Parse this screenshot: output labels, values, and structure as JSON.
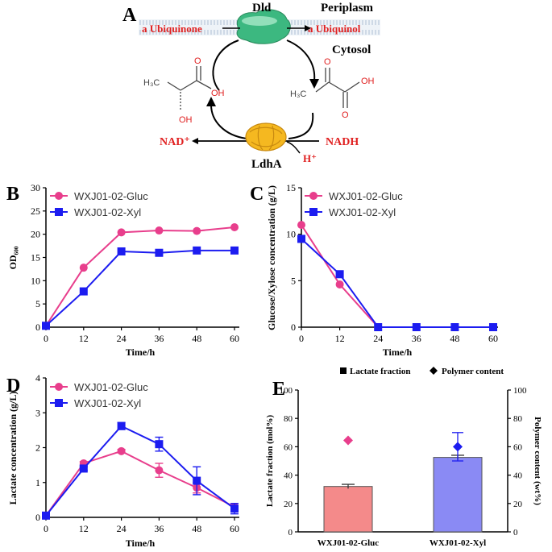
{
  "colors": {
    "gluc": "#e83e8c",
    "xyl": "#1c1cf0",
    "red": "#e02020",
    "barGluc": "#f48a8a",
    "barXyl": "#8a8af4"
  },
  "panelA": {
    "label": "A",
    "dld": "Dld",
    "periplasm": "Periplasm",
    "cytosol": "Cytosol",
    "ubiquinone": "a Ubiquinone",
    "ubiquinol": "a Ubiquinol",
    "nad": "NAD⁺",
    "nadh": "NADH",
    "h": "H⁺",
    "ldha": "LdhA",
    "lactate": {
      "o": "O",
      "h3c": "H₃C",
      "oh": "OH",
      "oh2": "OH"
    },
    "pyruvate": {
      "o1": "O",
      "o2": "O",
      "h3c": "H₃C",
      "oh": "OH"
    }
  },
  "chart_data": [
    {
      "id": "B",
      "type": "line",
      "label": "B",
      "ylabel": "OD₆₀₀",
      "xlabel": "Time/h",
      "x": [
        0,
        12,
        24,
        36,
        48,
        60
      ],
      "xlim": [
        0,
        60
      ],
      "ylim": [
        0,
        30
      ],
      "yticks": [
        0,
        5,
        10,
        15,
        20,
        25,
        30
      ],
      "series": [
        {
          "name": "WXJ01-02-Gluc",
          "values": [
            0.3,
            12.8,
            20.4,
            20.8,
            20.7,
            21.5
          ]
        },
        {
          "name": "WXJ01-02-Xyl",
          "values": [
            0.3,
            7.7,
            16.3,
            16.0,
            16.5,
            16.5
          ]
        }
      ]
    },
    {
      "id": "C",
      "type": "line",
      "label": "C",
      "ylabel": "Glucose/Xylose concentration (g/L)",
      "xlabel": "Time/h",
      "x": [
        0,
        12,
        24,
        36,
        48,
        60
      ],
      "xlim": [
        0,
        60
      ],
      "ylim": [
        0,
        15
      ],
      "yticks": [
        0,
        5,
        10,
        15
      ],
      "series": [
        {
          "name": "WXJ01-02-Gluc",
          "values": [
            11.0,
            4.6,
            0,
            0,
            0,
            0
          ]
        },
        {
          "name": "WXJ01-02-Xyl",
          "values": [
            9.5,
            5.7,
            0,
            0,
            0,
            0
          ]
        }
      ]
    },
    {
      "id": "D",
      "type": "line",
      "label": "D",
      "ylabel": "Lactate concentration (g/L)",
      "xlabel": "Time/h",
      "x": [
        0,
        12,
        24,
        36,
        48,
        60
      ],
      "xlim": [
        0,
        60
      ],
      "ylim": [
        0,
        4
      ],
      "yticks": [
        0,
        1,
        2,
        3,
        4
      ],
      "series": [
        {
          "name": "WXJ01-02-Gluc",
          "values": [
            0.05,
            1.55,
            1.9,
            1.35,
            0.85,
            0.3
          ],
          "errors": [
            0,
            0.05,
            0.05,
            0.2,
            0.15,
            0.1
          ]
        },
        {
          "name": "WXJ01-02-Xyl",
          "values": [
            0.05,
            1.4,
            2.62,
            2.1,
            1.05,
            0.25
          ],
          "errors": [
            0,
            0.05,
            0.1,
            0.2,
            0.4,
            0.15
          ]
        }
      ]
    },
    {
      "id": "E",
      "type": "bar",
      "label": "E",
      "legend": {
        "lactate": "Lactate fraction",
        "polymer": "Polymer content"
      },
      "ylabel": "Lactate fraction (mol%)",
      "ylabel2": "Polymer content (wt%)",
      "categories": [
        "WXJ01-02-Gluc",
        "WXJ01-02-Xyl"
      ],
      "lactate_fraction": [
        32,
        52.5
      ],
      "lactate_errors": [
        1.5,
        1.5
      ],
      "polymer_content": [
        64.5,
        60
      ],
      "polymer_errors": [
        0,
        10
      ],
      "ylim": [
        0,
        100
      ],
      "yticks": [
        0,
        20,
        40,
        60,
        80,
        100
      ]
    }
  ]
}
